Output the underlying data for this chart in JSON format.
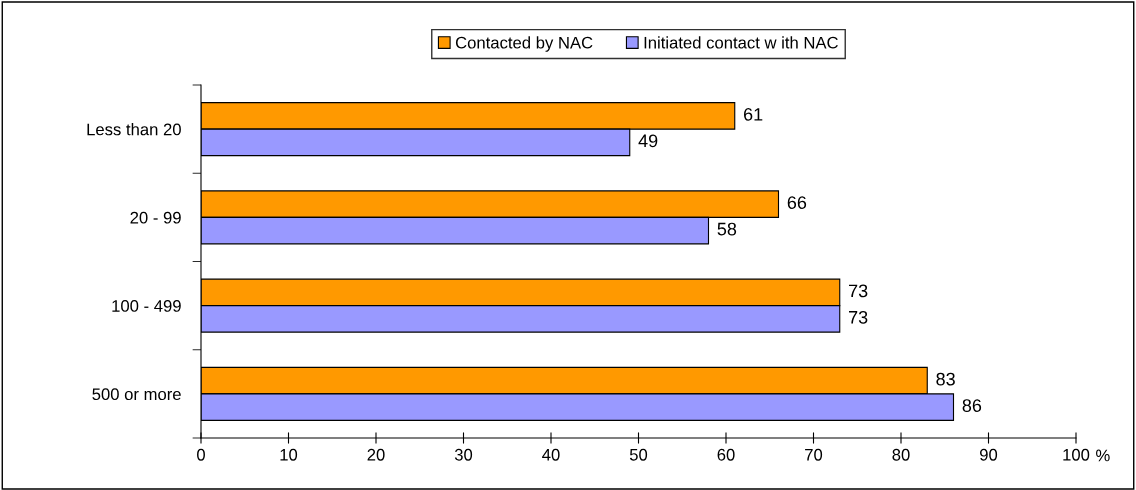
{
  "chart_data": {
    "type": "bar",
    "orientation": "horizontal",
    "xlabel": "%",
    "categories": [
      "Less than 20",
      "20 - 99",
      "100 - 499",
      "500 or more"
    ],
    "series": [
      {
        "name": "Contacted by NAC",
        "color": "#ff9900",
        "values": [
          61,
          66,
          73,
          83
        ]
      },
      {
        "name": "Initiated contact w ith NAC",
        "color": "#9999ff",
        "values": [
          49,
          58,
          73,
          86
        ]
      }
    ],
    "xlim": [
      0,
      100
    ],
    "xticks": [
      0,
      10,
      20,
      30,
      40,
      50,
      60,
      70,
      80,
      90,
      100
    ],
    "data_labels": true,
    "grid": false,
    "legend": "top"
  }
}
